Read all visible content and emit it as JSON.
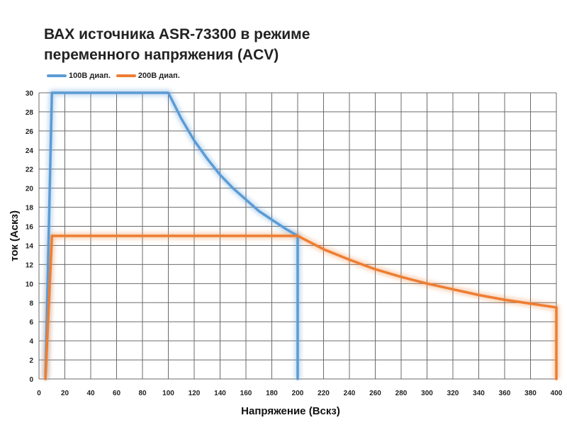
{
  "chart_data": {
    "type": "line",
    "title_lines": [
      "ВАХ источника ASR-73300 в режиме",
      "переменного напряжения (ACV)"
    ],
    "xlabel": "Напряжение (Вскз)",
    "ylabel": "ток (Аскз)",
    "xlim": [
      0,
      400
    ],
    "ylim": [
      0,
      30
    ],
    "x_ticks": [
      0,
      20,
      40,
      60,
      80,
      100,
      120,
      140,
      160,
      180,
      200,
      220,
      240,
      260,
      280,
      300,
      320,
      340,
      360,
      380,
      400
    ],
    "y_ticks": [
      0,
      2,
      4,
      6,
      8,
      10,
      12,
      14,
      16,
      18,
      20,
      22,
      24,
      26,
      28,
      30
    ],
    "grid": true,
    "legend_position": "top-left",
    "series": [
      {
        "name": "100В диап.",
        "color": "#5b9bd5",
        "x": [
          5,
          10,
          100,
          110,
          120,
          130,
          140,
          150,
          160,
          170,
          180,
          190,
          200,
          200
        ],
        "y": [
          0,
          30,
          30,
          27.3,
          25.0,
          23.1,
          21.4,
          20.0,
          18.8,
          17.6,
          16.7,
          15.8,
          15.0,
          0
        ]
      },
      {
        "name": "200В диап.",
        "color": "#ed7d31",
        "x": [
          5,
          10,
          200,
          220,
          240,
          260,
          280,
          300,
          320,
          340,
          360,
          380,
          400,
          400
        ],
        "y": [
          0,
          15,
          15,
          13.6,
          12.5,
          11.5,
          10.7,
          10.0,
          9.4,
          8.8,
          8.3,
          7.9,
          7.5,
          0
        ]
      }
    ]
  }
}
